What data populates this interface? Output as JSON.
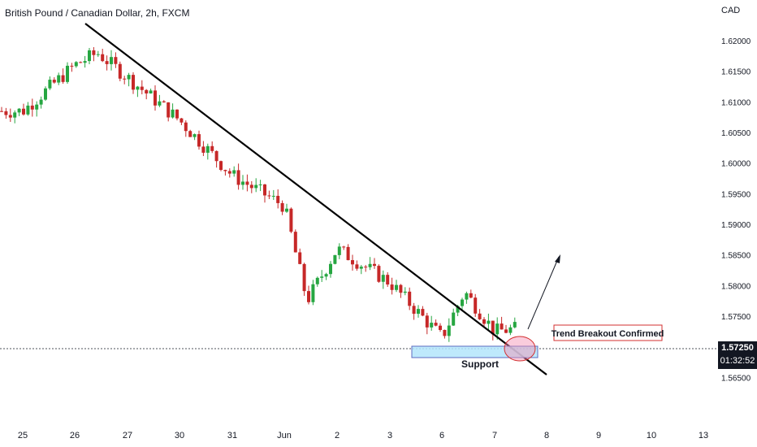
{
  "header": {
    "title": "British Pound / Canadian Dollar, 2h, FXCM",
    "currency": "CAD"
  },
  "price_label": {
    "price": "1.57250",
    "countdown": "01:32:52"
  },
  "annotations": {
    "breakout_label": "Trend Breakout Confirmed",
    "support_label": "Support"
  },
  "colors": {
    "up": "#26a641",
    "down": "#c62828",
    "trendline": "#000000",
    "support_fill": "#b3e5fc",
    "support_border": "#5c6bc0",
    "highlight": "#f48fb1",
    "label_border": "#d32f2f"
  },
  "chart_data": {
    "type": "candlestick",
    "title": "British Pound / Canadian Dollar, 2h, FXCM",
    "y_axis_ticks": [
      "1.62000",
      "1.61500",
      "1.61000",
      "1.60500",
      "1.60000",
      "1.59500",
      "1.59000",
      "1.58500",
      "1.58000",
      "1.57500",
      "1.57000",
      "1.56500"
    ],
    "ylim": [
      1.5612,
      1.6224
    ],
    "x_axis_labels": [
      "25",
      "26",
      "27",
      "30",
      "31",
      "Jun",
      "2",
      "3",
      "6",
      "7",
      "8",
      "9",
      "10",
      "13"
    ],
    "key_points": [
      {
        "x": "25",
        "close": 1.6085
      },
      {
        "x": "26",
        "close": 1.616
      },
      {
        "x": "26",
        "close": 1.618
      },
      {
        "x": "27",
        "close": 1.614
      },
      {
        "x": "30",
        "close": 1.607
      },
      {
        "x": "31",
        "close": 1.598
      },
      {
        "x": "Jun",
        "close": 1.593
      },
      {
        "x": "Jun",
        "close": 1.5775
      },
      {
        "x": "2",
        "close": 1.586
      },
      {
        "x": "3",
        "close": 1.5805
      },
      {
        "x": "6",
        "close": 1.5715
      },
      {
        "x": "6",
        "close": 1.579
      },
      {
        "x": "7",
        "close": 1.5725
      },
      {
        "x": "7",
        "close": 1.573
      }
    ],
    "current_price": 1.5725,
    "trendline": {
      "from": {
        "x": "26",
        "y": 1.622
      },
      "to": {
        "x": "8",
        "y": 1.569
      }
    },
    "support_zone": [
      1.5715,
      1.5735
    ]
  }
}
